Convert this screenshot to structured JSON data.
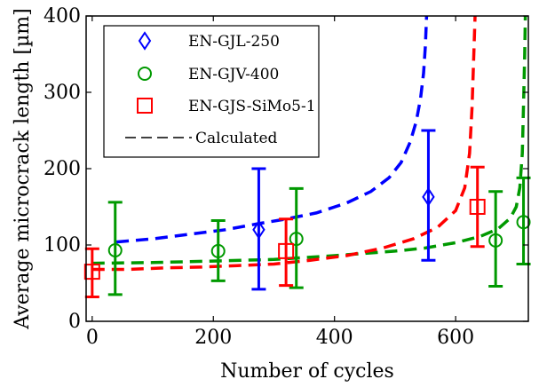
{
  "chart_data": {
    "type": "scatter",
    "xlabel": "Number of cycles",
    "ylabel": "Average microcrack length [µm]",
    "xlim": [
      -10,
      720
    ],
    "ylim": [
      0,
      400
    ],
    "xticks": [
      0,
      200,
      400,
      600
    ],
    "yticks": [
      0,
      100,
      200,
      300,
      400
    ],
    "x_tick_labels": [
      "0",
      "200",
      "400",
      "600"
    ],
    "y_tick_labels": [
      "0",
      "100",
      "200",
      "300",
      "400"
    ],
    "legend_position": "top-left",
    "series": [
      {
        "name": "EN-GJL-250",
        "color": "#0000ff",
        "marker": "diamond",
        "points": [
          {
            "x": 275,
            "y": 120,
            "err_low": 42,
            "err_high": 200
          },
          {
            "x": 555,
            "y": 163,
            "err_low": 80,
            "err_high": 250
          }
        ]
      },
      {
        "name": "EN-GJV-400",
        "color": "#009900",
        "marker": "circle",
        "points": [
          {
            "x": 38,
            "y": 93,
            "err_low": 35,
            "err_high": 156
          },
          {
            "x": 208,
            "y": 92,
            "err_low": 53,
            "err_high": 132
          },
          {
            "x": 337,
            "y": 108,
            "err_low": 44,
            "err_high": 174
          },
          {
            "x": 666,
            "y": 106,
            "err_low": 46,
            "err_high": 170
          },
          {
            "x": 712,
            "y": 130,
            "err_low": 75,
            "err_high": 188
          }
        ]
      },
      {
        "name": "EN-GJS-SiMo5-1",
        "color": "#ff0000",
        "marker": "square",
        "points": [
          {
            "x": 0,
            "y": 65,
            "err_low": 32,
            "err_high": 95
          },
          {
            "x": 320,
            "y": 92,
            "err_low": 47,
            "err_high": 134
          },
          {
            "x": 636,
            "y": 150,
            "err_low": 98,
            "err_high": 202
          }
        ]
      }
    ],
    "calculated_curves": [
      {
        "color": "#0000ff",
        "points": [
          [
            40,
            104
          ],
          [
            100,
            108
          ],
          [
            160,
            114
          ],
          [
            220,
            120
          ],
          [
            275,
            128
          ],
          [
            320,
            134
          ],
          [
            370,
            142
          ],
          [
            420,
            155
          ],
          [
            460,
            170
          ],
          [
            490,
            188
          ],
          [
            510,
            208
          ],
          [
            525,
            235
          ],
          [
            535,
            262
          ],
          [
            542,
            292
          ],
          [
            547,
            325
          ],
          [
            550,
            360
          ],
          [
            552,
            400
          ]
        ]
      },
      {
        "color": "#009900",
        "points": [
          [
            0,
            76
          ],
          [
            100,
            77
          ],
          [
            200,
            79
          ],
          [
            300,
            81
          ],
          [
            400,
            86
          ],
          [
            500,
            92
          ],
          [
            550,
            96
          ],
          [
            600,
            103
          ],
          [
            640,
            111
          ],
          [
            670,
            121
          ],
          [
            690,
            135
          ],
          [
            700,
            150
          ],
          [
            706,
            175
          ],
          [
            710,
            220
          ],
          [
            712,
            280
          ],
          [
            714,
            350
          ],
          [
            715,
            400
          ]
        ]
      },
      {
        "color": "#ff0000",
        "points": [
          [
            0,
            68
          ],
          [
            60,
            68
          ],
          [
            120,
            70
          ],
          [
            180,
            71
          ],
          [
            240,
            73
          ],
          [
            300,
            75
          ],
          [
            360,
            80
          ],
          [
            420,
            86
          ],
          [
            480,
            96
          ],
          [
            530,
            108
          ],
          [
            570,
            123
          ],
          [
            600,
            145
          ],
          [
            615,
            175
          ],
          [
            623,
            220
          ],
          [
            627,
            280
          ],
          [
            630,
            350
          ],
          [
            632,
            400
          ]
        ]
      }
    ],
    "legend": {
      "entries": [
        "EN-GJL-250",
        "EN-GJV-400",
        "EN-GJS-SiMo5-1",
        "Calculated"
      ]
    }
  }
}
